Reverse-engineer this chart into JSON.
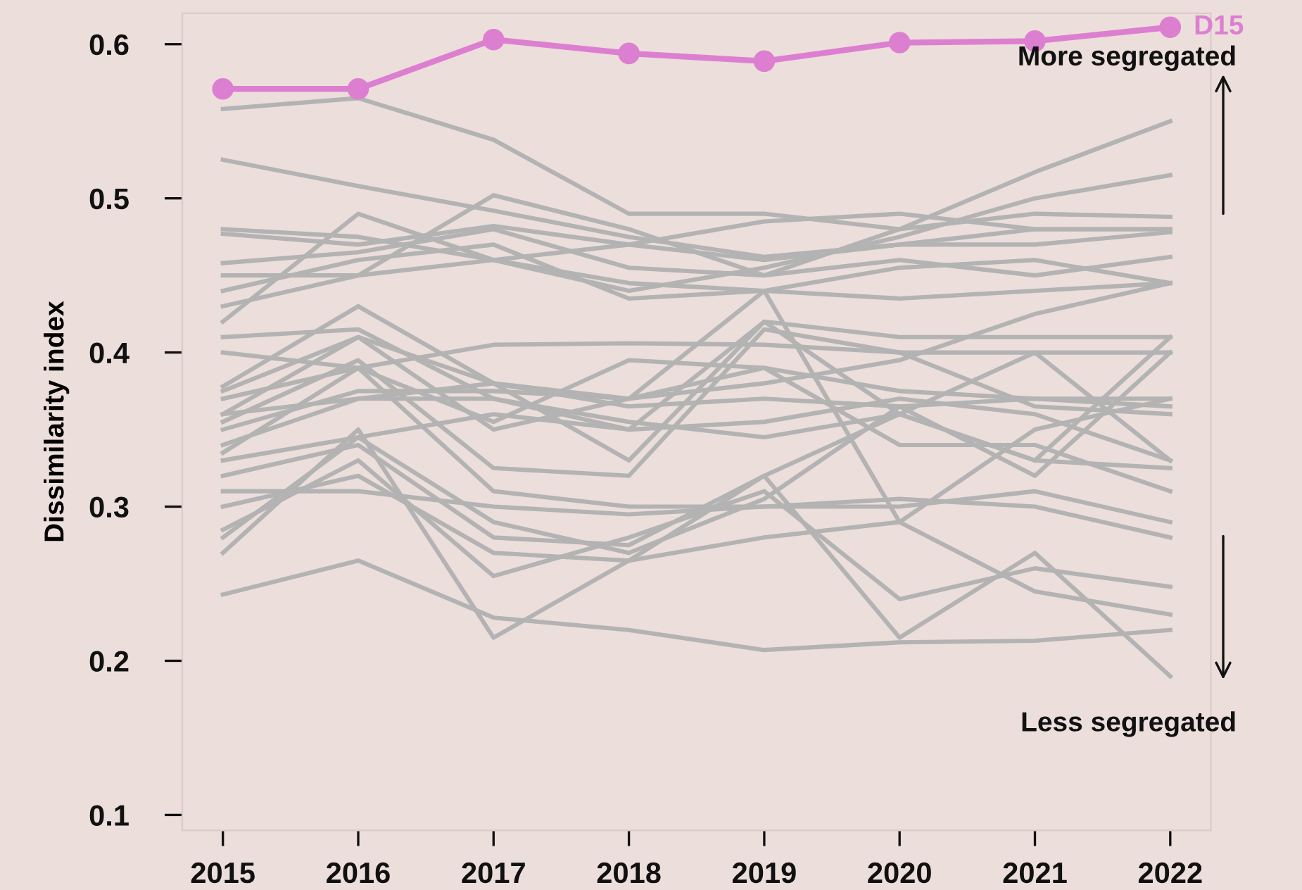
{
  "chart_data": {
    "type": "line",
    "ylabel": "Dissimilarity index",
    "x": [
      2015,
      2016,
      2017,
      2018,
      2019,
      2020,
      2021,
      2022
    ],
    "xlim": [
      2014.7,
      2022.3
    ],
    "xticks": [
      2015,
      2016,
      2017,
      2018,
      2019,
      2020,
      2021,
      2022
    ],
    "ylim": [
      0.09,
      0.62
    ],
    "yticks": [
      0.1,
      0.2,
      0.3,
      0.4,
      0.5,
      0.6
    ],
    "grid": false,
    "legend": false,
    "marker": "none",
    "line_style": "solid",
    "annotations": [
      "More segregated",
      "Less segregated"
    ],
    "series": [
      {
        "color": "#b3b3b3",
        "values": [
          0.558,
          0.565,
          0.538,
          0.49,
          0.49,
          0.48,
          0.49,
          0.488
        ]
      },
      {
        "color": "#b3b3b3",
        "values": [
          0.525,
          0.508,
          0.492,
          0.475,
          0.462,
          0.47,
          0.48,
          0.48
        ]
      },
      {
        "color": "#b3b3b3",
        "values": [
          0.48,
          0.475,
          0.46,
          0.44,
          0.455,
          0.475,
          0.5,
          0.515
        ]
      },
      {
        "color": "#b3b3b3",
        "values": [
          0.477,
          0.47,
          0.482,
          0.47,
          0.46,
          0.47,
          0.47,
          0.478
        ]
      },
      {
        "color": "#b3b3b3",
        "values": [
          0.458,
          0.465,
          0.48,
          0.455,
          0.45,
          0.46,
          0.45,
          0.462
        ]
      },
      {
        "color": "#b3b3b3",
        "values": [
          0.42,
          0.49,
          0.46,
          0.445,
          0.44,
          0.455,
          0.46,
          0.445
        ]
      },
      {
        "color": "#b3b3b3",
        "values": [
          0.43,
          0.45,
          0.502,
          0.48,
          0.45,
          0.48,
          0.517,
          0.55
        ]
      },
      {
        "color": "#b3b3b3",
        "values": [
          0.44,
          0.46,
          0.47,
          0.435,
          0.44,
          0.435,
          0.44,
          0.445
        ]
      },
      {
        "color": "#b3b3b3",
        "values": [
          0.41,
          0.415,
          0.37,
          0.35,
          0.42,
          0.36,
          0.33,
          0.41
        ]
      },
      {
        "color": "#b3b3b3",
        "values": [
          0.4,
          0.39,
          0.405,
          0.406,
          0.405,
          0.4,
          0.4,
          0.4
        ]
      },
      {
        "color": "#b3b3b3",
        "values": [
          0.378,
          0.43,
          0.38,
          0.33,
          0.42,
          0.41,
          0.41,
          0.41
        ]
      },
      {
        "color": "#b3b3b3",
        "values": [
          0.36,
          0.41,
          0.35,
          0.37,
          0.44,
          0.29,
          0.35,
          0.37
        ]
      },
      {
        "color": "#b3b3b3",
        "values": [
          0.355,
          0.395,
          0.325,
          0.32,
          0.415,
          0.4,
          0.365,
          0.36
        ]
      },
      {
        "color": "#b3b3b3",
        "values": [
          0.35,
          0.375,
          0.375,
          0.37,
          0.39,
          0.375,
          0.37,
          0.37
        ]
      },
      {
        "color": "#b3b3b3",
        "values": [
          0.34,
          0.37,
          0.38,
          0.365,
          0.37,
          0.365,
          0.37,
          0.365
        ]
      },
      {
        "color": "#b3b3b3",
        "values": [
          0.335,
          0.39,
          0.31,
          0.3,
          0.3,
          0.3,
          0.31,
          0.29
        ]
      },
      {
        "color": "#b3b3b3",
        "values": [
          0.33,
          0.345,
          0.36,
          0.35,
          0.355,
          0.37,
          0.36,
          0.33
        ]
      },
      {
        "color": "#b3b3b3",
        "values": [
          0.32,
          0.34,
          0.28,
          0.275,
          0.32,
          0.215,
          0.27,
          0.19
        ]
      },
      {
        "color": "#b3b3b3",
        "values": [
          0.31,
          0.31,
          0.3,
          0.295,
          0.3,
          0.305,
          0.3,
          0.28
        ]
      },
      {
        "color": "#b3b3b3",
        "values": [
          0.3,
          0.32,
          0.27,
          0.265,
          0.28,
          0.29,
          0.245,
          0.23
        ]
      },
      {
        "color": "#b3b3b3",
        "values": [
          0.285,
          0.33,
          0.255,
          0.28,
          0.31,
          0.24,
          0.26,
          0.248
        ]
      },
      {
        "color": "#b3b3b3",
        "values": [
          0.28,
          0.345,
          0.29,
          0.27,
          0.305,
          0.365,
          0.32,
          0.4
        ]
      },
      {
        "color": "#b3b3b3",
        "values": [
          0.27,
          0.35,
          0.215,
          0.265,
          0.32,
          0.36,
          0.33,
          0.325
        ]
      },
      {
        "color": "#b3b3b3",
        "values": [
          0.243,
          0.265,
          0.228,
          0.22,
          0.207,
          0.212,
          0.213,
          0.22
        ]
      },
      {
        "color": "#b3b3b3",
        "values": [
          0.36,
          0.37,
          0.37,
          0.355,
          0.345,
          0.36,
          0.4,
          0.33
        ]
      },
      {
        "color": "#b3b3b3",
        "values": [
          0.37,
          0.39,
          0.355,
          0.395,
          0.39,
          0.34,
          0.34,
          0.31
        ]
      },
      {
        "color": "#b3b3b3",
        "values": [
          0.375,
          0.41,
          0.38,
          0.37,
          0.38,
          0.395,
          0.425,
          0.445
        ]
      },
      {
        "color": "#b3b3b3",
        "values": [
          0.45,
          0.45,
          0.46,
          0.47,
          0.485,
          0.49,
          0.48,
          0.48
        ]
      },
      {
        "name": "D15",
        "color": "#dd7fd0",
        "marker": "circle",
        "values": [
          0.571,
          0.571,
          0.603,
          0.594,
          0.589,
          0.601,
          0.602,
          0.611
        ]
      }
    ]
  }
}
